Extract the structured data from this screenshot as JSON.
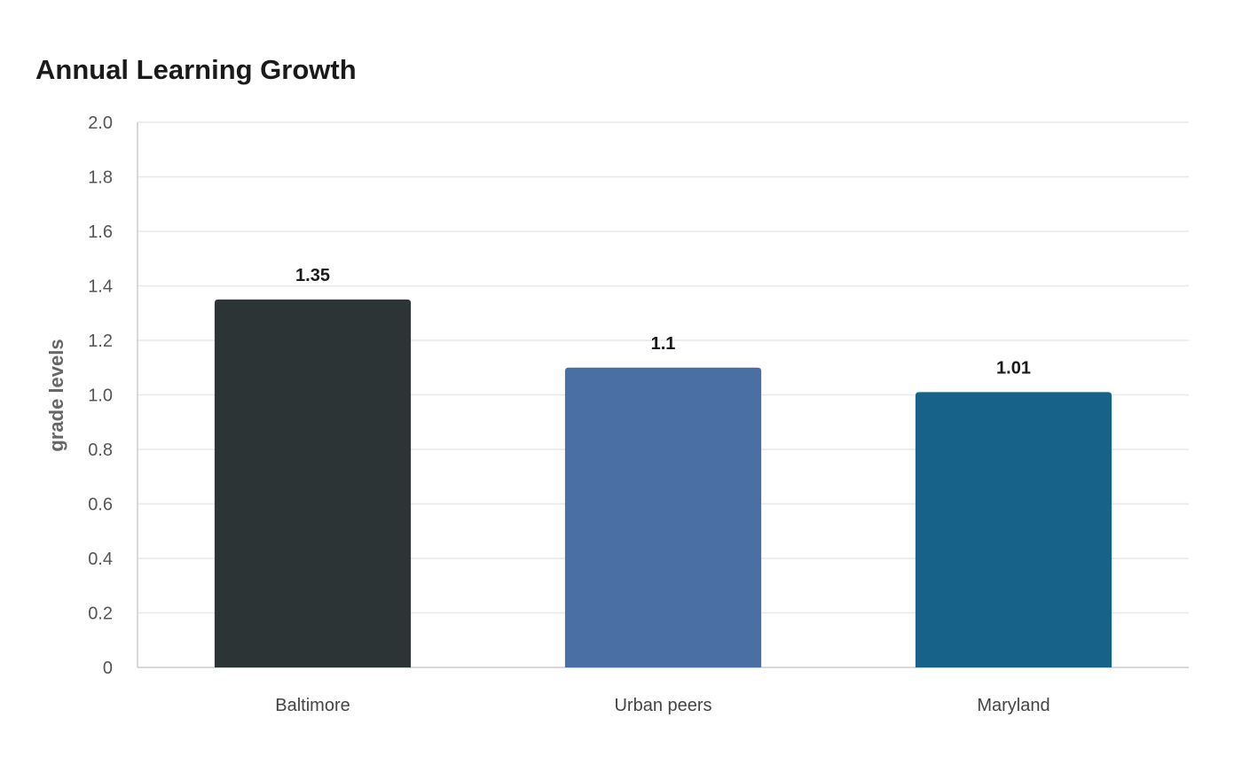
{
  "chart_data": {
    "type": "bar",
    "title": "Annual Learning Growth",
    "ylabel": "grade levels",
    "xlabel": "",
    "categories": [
      "Baltimore",
      "Urban peers",
      "Maryland"
    ],
    "values": [
      1.35,
      1.1,
      1.01
    ],
    "data_labels": [
      "1.35",
      "1.1",
      "1.01"
    ],
    "colors": [
      "#2d3436",
      "#4a6fa5",
      "#176289"
    ],
    "ylim": [
      0,
      2
    ],
    "yticks": [
      0,
      0.2,
      0.4,
      0.6,
      0.8,
      1.0,
      1.2,
      1.4,
      1.6,
      1.8,
      2.0
    ],
    "ytick_labels": [
      "0",
      "0.2",
      "0.4",
      "0.6",
      "0.8",
      "1.0",
      "1.2",
      "1.4",
      "1.6",
      "1.8",
      "2.0"
    ],
    "grid": true,
    "legend": "none"
  }
}
